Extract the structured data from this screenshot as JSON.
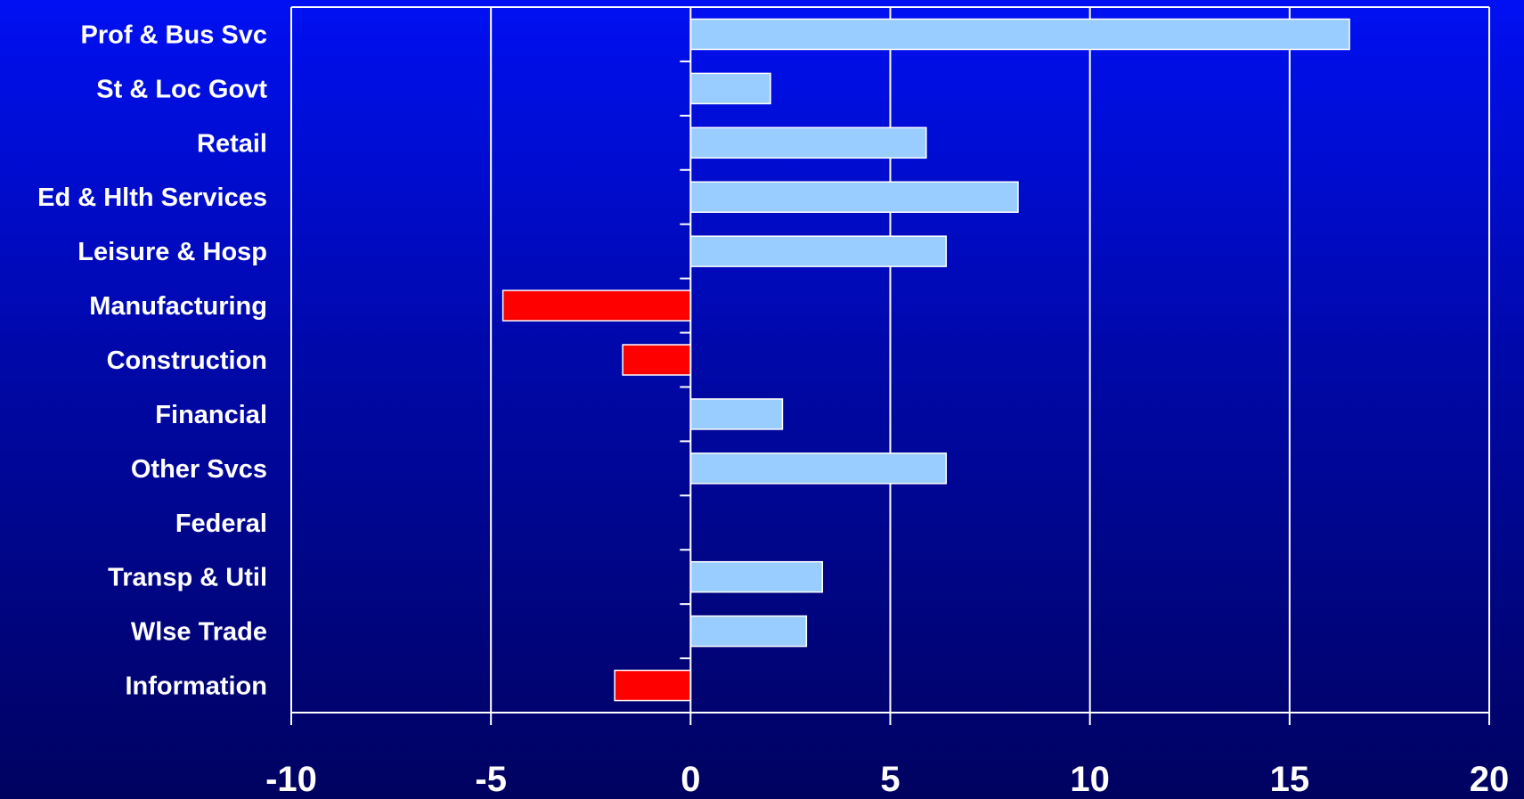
{
  "chart_data": {
    "type": "bar",
    "orientation": "horizontal",
    "categories": [
      "Prof & Bus Svc",
      "St & Loc Govt",
      "Retail",
      "Ed & Hlth Services",
      "Leisure & Hosp",
      "Manufacturing",
      "Construction",
      "Financial",
      "Other Svcs",
      "Federal",
      "Transp & Util",
      "Wlse Trade",
      "Information"
    ],
    "values": [
      16.5,
      2.0,
      5.9,
      8.2,
      6.4,
      -4.7,
      -1.7,
      2.3,
      6.4,
      0,
      3.3,
      2.9,
      -1.9
    ],
    "xlim": [
      -10,
      20
    ],
    "xticks": [
      "-10",
      "-5",
      "0",
      "5",
      "10",
      "15",
      "20"
    ],
    "grid": "vertical",
    "title": "",
    "xlabel": "",
    "ylabel": "",
    "colors": {
      "positive": "#99ccff",
      "negative": "#ff0000",
      "bar_edge": "#ffffff",
      "grid": "#ffffff",
      "text": "#ffffff"
    }
  }
}
